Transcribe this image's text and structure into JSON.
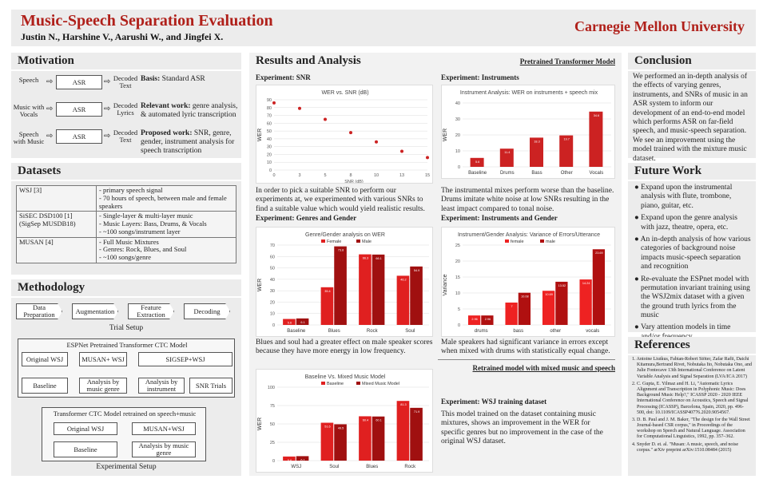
{
  "header": {
    "title": "Music-Speech Separation Evaluation",
    "authors": "Justin N., Harshine V., Aarushi W., and Jingfei X.",
    "institution": "Carnegie Mellon University"
  },
  "motivation": {
    "heading": "Motivation",
    "rows": [
      {
        "input": "Speech",
        "box": "ASR",
        "output": "Decoded Text",
        "desc_bold": "Basis:",
        "desc": " Standard ASR"
      },
      {
        "input": "Music with Vocals",
        "box": "ASR",
        "output": "Decoded Lyrics",
        "desc_bold": "Relevant work:",
        "desc": " genre analysis, & automated lyric transcription"
      },
      {
        "input": "Speech with Music",
        "box": "ASR",
        "output": "Decoded Text",
        "desc_bold": "Proposed work:",
        "desc": " SNR, genre, gender, instrument analysis for speech transcription"
      }
    ]
  },
  "datasets": {
    "heading": "Datasets",
    "rows": [
      {
        "name": "WSJ [3]",
        "desc": "- primary speech signal\n- 70 hours of speech, between male and female speakers"
      },
      {
        "name": "SiSEC DSD100 [1] (SigSep MUSDB18)",
        "desc": "- Single-layer & multi-layer music\n- Music Layers: Bass, Drums, & Vocals\n- ~100 songs/instrument layer"
      },
      {
        "name": "MUSAN [4]",
        "desc": "- Full Music Mixtures\n- Genres: Rock, Blues, and Soul\n- ~100 songs/genre"
      }
    ]
  },
  "methodology": {
    "heading": "Methodology",
    "trial": [
      "Data Preparation",
      "Augmentation",
      "Feature Extraction",
      "Decoding"
    ],
    "trial_caption": "Trial Setup",
    "espnet_title": "ESPNet Pretrained Transformer CTC Model",
    "espnet_top": [
      "Original WSJ",
      "MUSAN+ WSJ",
      "SIGSEP+WSJ"
    ],
    "espnet_bottom": [
      "Baseline",
      "Analysis by music genre",
      "Analysis by instrument",
      "SNR Trials"
    ],
    "retrained_title": "Transformer CTC Model retrained on speech+music",
    "retrained_top": [
      "Original WSJ",
      "MUSAN+WSJ"
    ],
    "retrained_bottom": [
      "Baseline",
      "Analysis by music genre"
    ],
    "exp_caption": "Experimental Setup"
  },
  "results": {
    "heading": "Results and Analysis",
    "pretrained_label": "Pretrained Transformer Model",
    "retrained_label": "Retrained model with mixed music and speech",
    "snr_title": "Experiment: SNR",
    "snr_caption": "In order to pick a suitable SNR to perform our experiments at, we experimented with  various SNRs to find a suitable value which would yield realistic results.",
    "inst_title": "Experiment: Instruments",
    "inst_caption": "The instrumental mixes perform worse than the baseline. Drums imitate white noise at low SNRs resulting in the least impact compared to tonal noise.",
    "genre_title": "Experiment: Genres and Gender",
    "genre_caption": "Blues and soul had a greater effect on male speaker scores because they have more energy in low frequency.",
    "ig_title": "Experiment: Instruments and Gender",
    "ig_caption": "Male speakers had significant variance in errors except when mixed with drums with statistically equal change.",
    "wsj_title": "Experiment: WSJ training dataset",
    "wsj_caption": "This model trained on the dataset containing music mixtures, shows an improvement in the WER for specific genres but no improvement in the case of the original WSJ dataset."
  },
  "conclusion": {
    "heading": "Conclusion",
    "text": "We performed an in-depth analysis of the effects  of varying genres, instruments, and SNRs  of music in an ASR system to inform our development of an end-to-end model which performs ASR on far-field speech, and music-speech separation. We see an improvement using the model trained with the mixture music dataset."
  },
  "future": {
    "heading": "Future Work",
    "items": [
      "Expand upon the instrumental analysis with flute, trombone, piano, guitar, etc.",
      "Expand upon the genre analysis with jazz, theatre, opera, etc.",
      "An in-depth analysis of how various categories of background noise impacts music-speech separation and recognition",
      "Re-evaluate the ESPnet model with permutation invariant training using the WSJ2mix dataset with a given the ground truth lyrics from the music",
      "Vary attention models in time and/or frequency"
    ]
  },
  "references": {
    "heading": "References",
    "items": [
      "1. Antoine Liutkus, Fabian-Robert Stöter, Zafar Rafii, Daichi Kitamura,Bertrand Rivet, Nobutaka Ito, Nobutaka Ono, and Julie Fontecave 13th International Conference on Latent Variable Analysis and Signal Separation (LVA/ICA 2017)",
      "2. C. Gupta, E. Yilmaz and H. Li, \"Automatic Lyrics Alignment and Transcription in Polyphonic Music: Does Background Music Help?,\" ICASSP 2020 - 2020 IEEE International Conference on Acoustics, Speech and Signal Processing (ICASSP), Barcelona, Spain, 2020, pp. 496-500, doi: 10.1109/ICASSP40776.2020.9054567.",
      "3. D. B. Paul and J. M. Baker, \"The design for the Wall Street Journal-based CSR corpus,\" in Proceedings of the workshop on Speech and Natural Language. Association for Computational Linguistics, 1992, pp. 357–362.",
      "4. Snyder D. et. al. \"Musan: A music, speech, and noise corpus.\" arXiv preprint arXiv:1510.08484 (2015)"
    ]
  },
  "chart_data": [
    {
      "type": "scatter",
      "title": "WER vs. SNR (dB)",
      "xlabel": "SNR (dB)",
      "ylabel": "WER",
      "x": [
        0,
        2.5,
        5,
        7.5,
        10,
        12.5,
        15
      ],
      "y": [
        86,
        79,
        65,
        48,
        36,
        24,
        16
      ],
      "xticks": [
        "0",
        "3",
        "5",
        "8",
        "10",
        "13",
        "15"
      ],
      "yticks": [
        "0",
        "10",
        "20",
        "30",
        "40",
        "50",
        "60",
        "70",
        "80",
        "90"
      ],
      "ylim": [
        0,
        90
      ],
      "color": "#cc2222"
    },
    {
      "type": "bar",
      "title": "Instrument Analysis: WER on instruments + speech mix",
      "ylabel": "WER",
      "categories": [
        "Baseline",
        "Drums",
        "Bass",
        "Other",
        "Vocals"
      ],
      "values": [
        5.6,
        11.4,
        18.3,
        19.7,
        34.6
      ],
      "ylim": [
        0,
        40
      ],
      "yticks": [
        "0",
        "10",
        "20",
        "30",
        "40"
      ],
      "color": "#cc2222"
    },
    {
      "type": "bar",
      "title": "Genre/Gender analysis on WER",
      "ylabel": "WER",
      "categories": [
        "Baseline",
        "Blues",
        "Rock",
        "Soul"
      ],
      "series": [
        {
          "name": "Female",
          "values": [
            5.6,
            35.4,
            66.3,
            46.2
          ],
          "color": "#e02020"
        },
        {
          "name": "Male",
          "values": [
            6.1,
            73.8,
            66.1,
            54.9
          ],
          "color": "#a01010"
        }
      ],
      "ylim": [
        0,
        75
      ],
      "yticks": [
        "0",
        "10",
        "20",
        "30",
        "40",
        "50",
        "60",
        "70"
      ]
    },
    {
      "type": "bar",
      "title": "Instrument/Gender Analysis: Variance of Errors/Utterance",
      "ylabel": "Variance",
      "categories": [
        "drums",
        "bass",
        "other",
        "vocals"
      ],
      "series": [
        {
          "name": "female",
          "values": [
            2.96,
            7.0,
            10.69,
            14.24
          ],
          "color": "#ee2222"
        },
        {
          "name": "male",
          "values": [
            2.96,
            10.08,
            13.52,
            23.69
          ],
          "color": "#b01010"
        }
      ],
      "ylim": [
        0,
        25
      ],
      "yticks": [
        "0",
        "5",
        "10",
        "15",
        "20",
        "25"
      ]
    },
    {
      "type": "bar",
      "title": "Baseline Vs. Mixed Music Model",
      "ylabel": "WER",
      "categories": [
        "WSJ",
        "Soul",
        "Blues",
        "Rock"
      ],
      "series": [
        {
          "name": "Baseline",
          "values": [
            5.6,
            51.6,
            60.4,
            81.3
          ],
          "color": "#e02020"
        },
        {
          "name": "Mixed Music Model",
          "values": [
            6.1,
            49.5,
            60.1,
            71.9
          ],
          "color": "#a01010"
        }
      ],
      "ylim": [
        0,
        100
      ],
      "yticks": [
        "0",
        "25",
        "50",
        "75",
        "100"
      ]
    }
  ]
}
